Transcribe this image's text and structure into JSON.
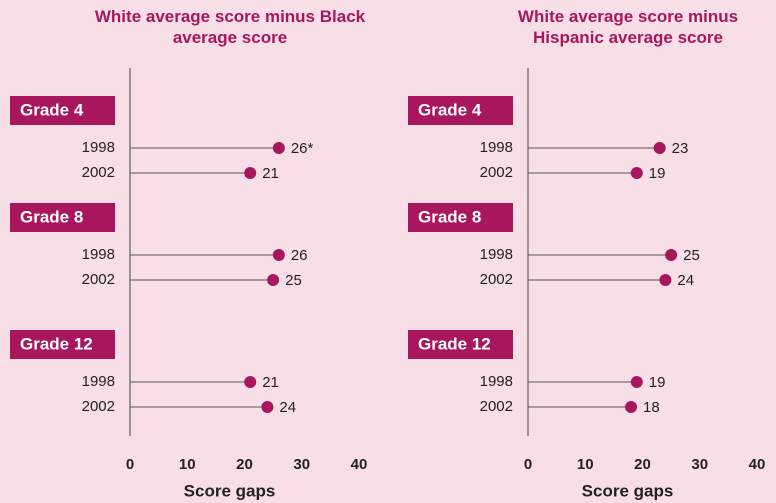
{
  "chart_data": [
    {
      "type": "lollipop",
      "title": "White average score minus Black average score",
      "xlabel": "Score gaps",
      "groups": [
        "Grade 4",
        "Grade 8",
        "Grade 12"
      ],
      "series": [
        {
          "name": "1998",
          "color": "#a8175e",
          "values": [
            26,
            26,
            21
          ],
          "value_labels": [
            "26*",
            "26",
            "21"
          ]
        },
        {
          "name": "2002",
          "color": "#a8175e",
          "values": [
            21,
            25,
            24
          ]
        }
      ],
      "xlim": [
        0,
        40
      ],
      "xticks": [
        0,
        10,
        20,
        30,
        40
      ]
    },
    {
      "type": "lollipop",
      "title": "White average score minus Hispanic average score",
      "xlabel": "Score gaps",
      "groups": [
        "Grade 4",
        "Grade 8",
        "Grade 12"
      ],
      "series": [
        {
          "name": "1998",
          "color": "#a8175e",
          "values": [
            23,
            25,
            19
          ]
        },
        {
          "name": "2002",
          "color": "#a8175e",
          "values": [
            19,
            24,
            18
          ]
        }
      ],
      "xlim": [
        0,
        40
      ],
      "xticks": [
        0,
        10,
        20,
        30,
        40
      ]
    }
  ]
}
